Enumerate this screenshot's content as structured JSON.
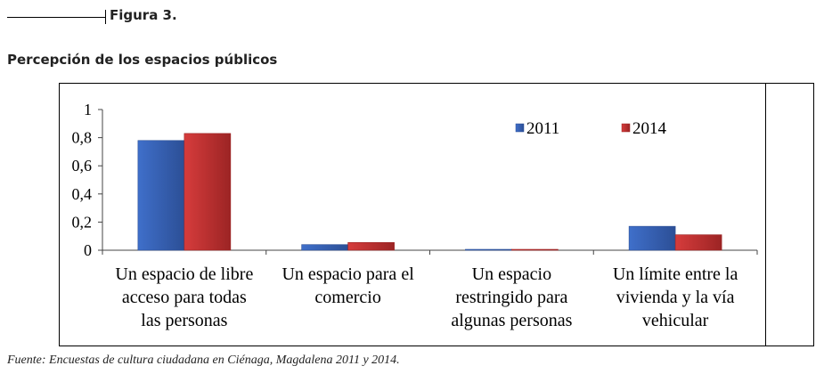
{
  "figure": {
    "label": "Figura 3.",
    "title": "Percepción de los espacios públicos",
    "source": "Fuente: Encuestas de cultura ciudadana en Ciénaga, Magdalena 2011 y 2014."
  },
  "colors": {
    "series_2011": "#3f6fca",
    "series_2011_dark": "#2c4f96",
    "series_2014": "#d63c3c",
    "series_2014_dark": "#9c2424"
  },
  "chart_data": {
    "type": "bar",
    "categories": [
      [
        "Un espacio de libre",
        "acceso para todas",
        "las personas"
      ],
      [
        "Un espacio para el",
        "comercio"
      ],
      [
        "Un espacio",
        "restringido  para",
        "algunas personas"
      ],
      [
        "Un límite entre la",
        "vivienda y la vía",
        "vehicular"
      ]
    ],
    "series": [
      {
        "name": "2011",
        "values": [
          0.78,
          0.04,
          0.005,
          0.17
        ]
      },
      {
        "name": "2014",
        "values": [
          0.83,
          0.055,
          0.005,
          0.11
        ]
      }
    ],
    "ylim": [
      0,
      1
    ],
    "yticks": [
      "0",
      "0,2",
      "0,4",
      "0,6",
      "0,8",
      "1"
    ],
    "ytick_values": [
      0,
      0.2,
      0.4,
      0.6,
      0.8,
      1
    ],
    "legend_position": "top-right",
    "grid": false
  }
}
